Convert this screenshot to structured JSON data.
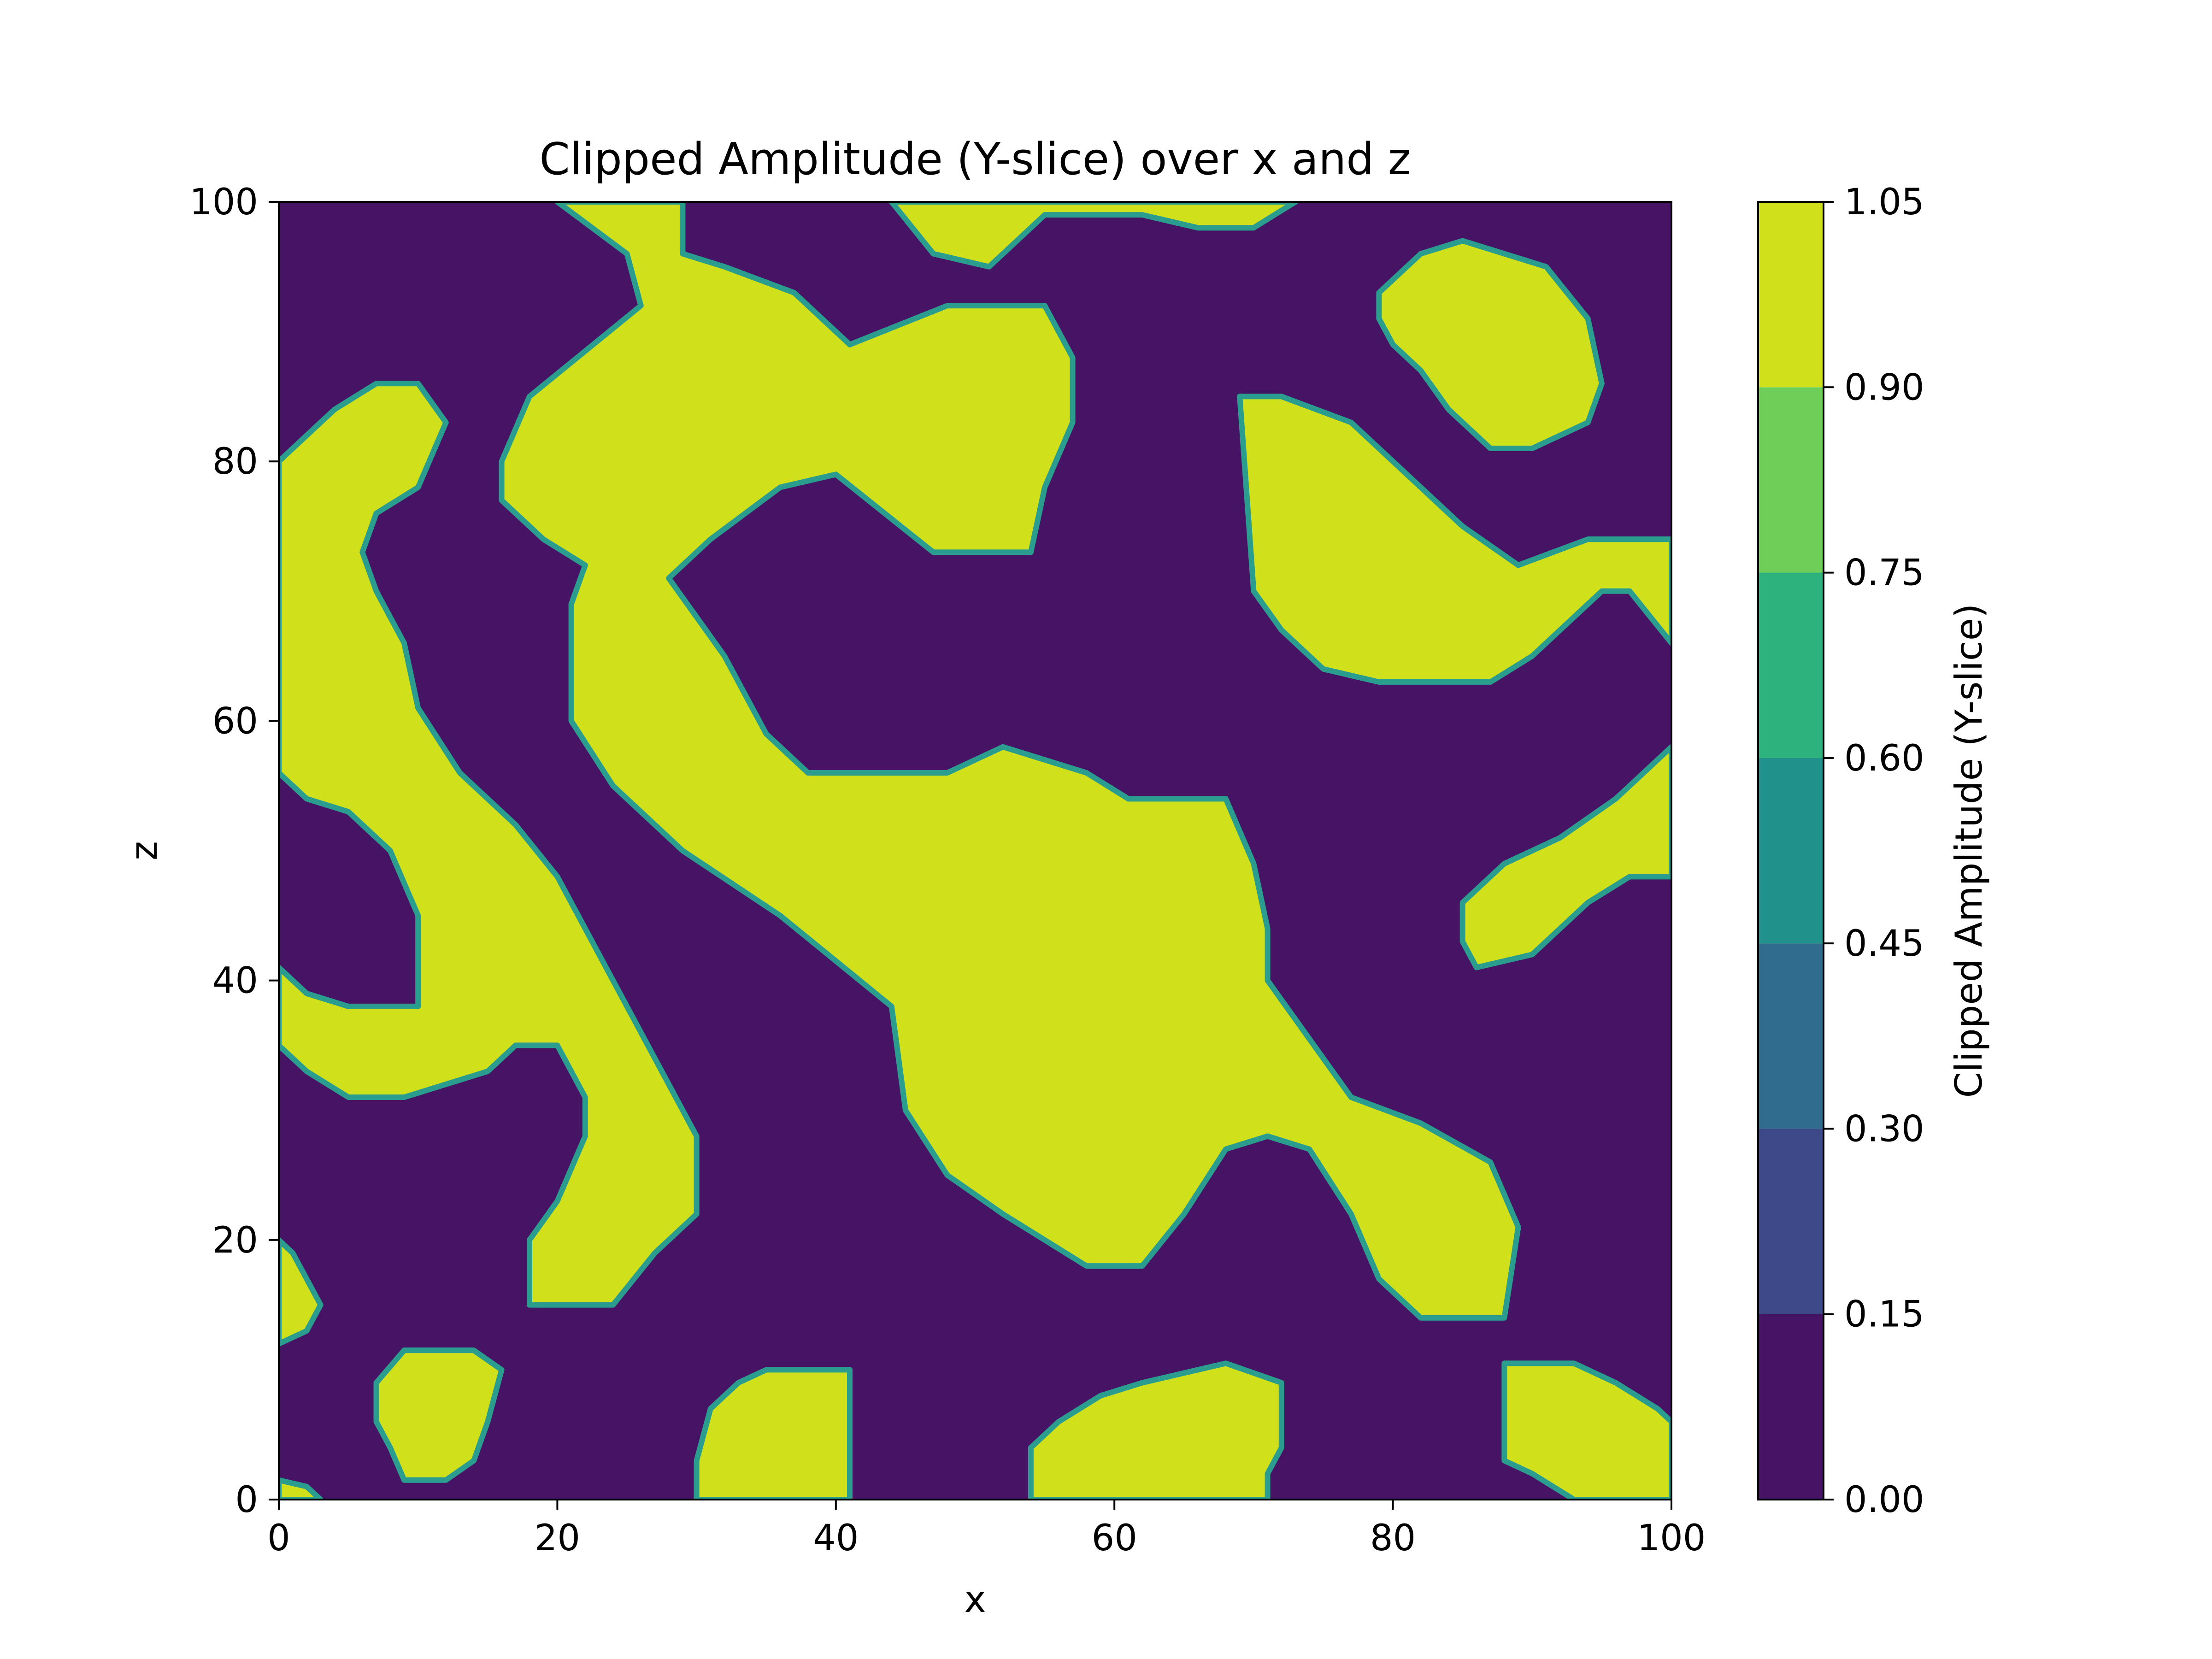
{
  "chart_data": {
    "type": "heatmap",
    "subtype": "filled-contour",
    "title": "Clipped Amplitude (Y-slice) over x and z",
    "xlabel": "x",
    "ylabel": "z",
    "xlim": [
      0,
      100
    ],
    "ylim": [
      0,
      100
    ],
    "x_ticks": [
      "0",
      "20",
      "40",
      "60",
      "80",
      "100"
    ],
    "y_ticks": [
      "0",
      "20",
      "40",
      "60",
      "80",
      "100"
    ],
    "colorbar": {
      "label": "Clipped Amplitude (Y-slice)",
      "levels": [
        0.0,
        0.15,
        0.3,
        0.45,
        0.6,
        0.75,
        0.9,
        1.05
      ],
      "tick_labels": [
        "0.00",
        "0.15",
        "0.30",
        "0.45",
        "0.60",
        "0.75",
        "0.90",
        "1.05"
      ],
      "colors": [
        "#471365",
        "#3e4989",
        "#2f6c8e",
        "#21918c",
        "#2db27d",
        "#6ece58",
        "#d0e11c"
      ]
    },
    "grid": false,
    "background_color": "#471365",
    "high_color": "#d0e11c",
    "edge_color": "#2a9d8f",
    "high_regions": [
      {
        "name": "top-center branching ridge",
        "z_at_x": [
          [
            20,
            100
          ],
          [
            25,
            96
          ],
          [
            26,
            92
          ],
          [
            18,
            85
          ],
          [
            16,
            80
          ],
          [
            16,
            77
          ],
          [
            19,
            74
          ],
          [
            22,
            72
          ],
          [
            21,
            69
          ],
          [
            21,
            60
          ],
          [
            24,
            55
          ],
          [
            29,
            50
          ],
          [
            36,
            45
          ],
          [
            44,
            38
          ],
          [
            45,
            30
          ],
          [
            48,
            25
          ],
          [
            52,
            22
          ],
          [
            58,
            18
          ],
          [
            62,
            18
          ],
          [
            65,
            22
          ],
          [
            68,
            27
          ],
          [
            71,
            28
          ],
          [
            74,
            27
          ],
          [
            77,
            22
          ],
          [
            79,
            17
          ],
          [
            82,
            14
          ],
          [
            88,
            14
          ],
          [
            89,
            21
          ],
          [
            87,
            26
          ],
          [
            82,
            29
          ],
          [
            77,
            31
          ],
          [
            71,
            40
          ],
          [
            71,
            44
          ],
          [
            70,
            49
          ],
          [
            68,
            54
          ],
          [
            61,
            54
          ],
          [
            58,
            56
          ],
          [
            52,
            58
          ],
          [
            48,
            56
          ],
          [
            38,
            56
          ],
          [
            35,
            59
          ],
          [
            32,
            65
          ],
          [
            28,
            71
          ],
          [
            31,
            74
          ],
          [
            36,
            78
          ],
          [
            40,
            79
          ],
          [
            47,
            73
          ],
          [
            54,
            73
          ],
          [
            55,
            78
          ],
          [
            57,
            83
          ],
          [
            57,
            88
          ],
          [
            55,
            92
          ],
          [
            48,
            92
          ],
          [
            41,
            89
          ],
          [
            37,
            93
          ],
          [
            32,
            95
          ],
          [
            29,
            96
          ],
          [
            29,
            100
          ]
        ]
      },
      {
        "name": "left diagonal band",
        "z_at_x": [
          [
            0,
            80
          ],
          [
            4,
            84
          ],
          [
            7,
            86
          ],
          [
            10,
            86
          ],
          [
            12,
            83
          ],
          [
            10,
            78
          ],
          [
            7,
            76
          ],
          [
            6,
            73
          ],
          [
            7,
            70
          ],
          [
            9,
            66
          ],
          [
            10,
            61
          ],
          [
            13,
            56
          ],
          [
            17,
            52
          ],
          [
            20,
            48
          ],
          [
            23,
            42
          ],
          [
            25,
            38
          ],
          [
            28,
            32
          ],
          [
            30,
            28
          ],
          [
            30,
            22
          ],
          [
            27,
            19
          ],
          [
            24,
            15
          ],
          [
            18,
            15
          ],
          [
            18,
            20
          ],
          [
            20,
            23
          ],
          [
            22,
            28
          ],
          [
            22,
            31
          ],
          [
            20,
            35
          ],
          [
            17,
            35
          ],
          [
            15,
            33
          ],
          [
            12,
            32
          ],
          [
            9,
            31
          ],
          [
            5,
            31
          ],
          [
            2,
            33
          ],
          [
            0,
            35
          ],
          [
            0,
            41
          ],
          [
            2,
            39
          ],
          [
            5,
            38
          ],
          [
            10,
            38
          ],
          [
            10,
            45
          ],
          [
            8,
            50
          ],
          [
            5,
            53
          ],
          [
            2,
            54
          ],
          [
            0,
            56
          ]
        ]
      },
      {
        "name": "right upper lobe",
        "z_at_x": [
          [
            69,
            85
          ],
          [
            72,
            85
          ],
          [
            77,
            83
          ],
          [
            81,
            79
          ],
          [
            85,
            75
          ],
          [
            89,
            72
          ],
          [
            94,
            74
          ],
          [
            100,
            74
          ],
          [
            100,
            66
          ],
          [
            97,
            70
          ],
          [
            95,
            70
          ],
          [
            90,
            65
          ],
          [
            87,
            63
          ],
          [
            83,
            63
          ],
          [
            79,
            63
          ],
          [
            75,
            64
          ],
          [
            72,
            67
          ],
          [
            70,
            70
          ]
        ]
      },
      {
        "name": "top-right blob",
        "z_at_x": [
          [
            79,
            93
          ],
          [
            82,
            96
          ],
          [
            85,
            97
          ],
          [
            88,
            96
          ],
          [
            91,
            95
          ],
          [
            94,
            91
          ],
          [
            95,
            86
          ],
          [
            94,
            83
          ],
          [
            90,
            81
          ],
          [
            87,
            81
          ],
          [
            84,
            84
          ],
          [
            82,
            87
          ],
          [
            80,
            89
          ],
          [
            79,
            91
          ]
        ]
      },
      {
        "name": "right middle strip",
        "z_at_x": [
          [
            85,
            46
          ],
          [
            88,
            49
          ],
          [
            92,
            51
          ],
          [
            96,
            54
          ],
          [
            100,
            58
          ],
          [
            100,
            48
          ],
          [
            97,
            48
          ],
          [
            94,
            46
          ],
          [
            90,
            42
          ],
          [
            86,
            41
          ],
          [
            85,
            43
          ]
        ]
      },
      {
        "name": "top edge blob",
        "z_at_x": [
          [
            44,
            100
          ],
          [
            47,
            96
          ],
          [
            51,
            95
          ],
          [
            55,
            99
          ],
          [
            62,
            99
          ],
          [
            66,
            98
          ],
          [
            70,
            98
          ],
          [
            73,
            100
          ]
        ]
      },
      {
        "name": "bottom blobs",
        "centers": [
          [
            13,
            7
          ],
          [
            37,
            5
          ],
          [
            63,
            5
          ],
          [
            95,
            5
          ],
          [
            1,
            16
          ]
        ]
      }
    ]
  }
}
